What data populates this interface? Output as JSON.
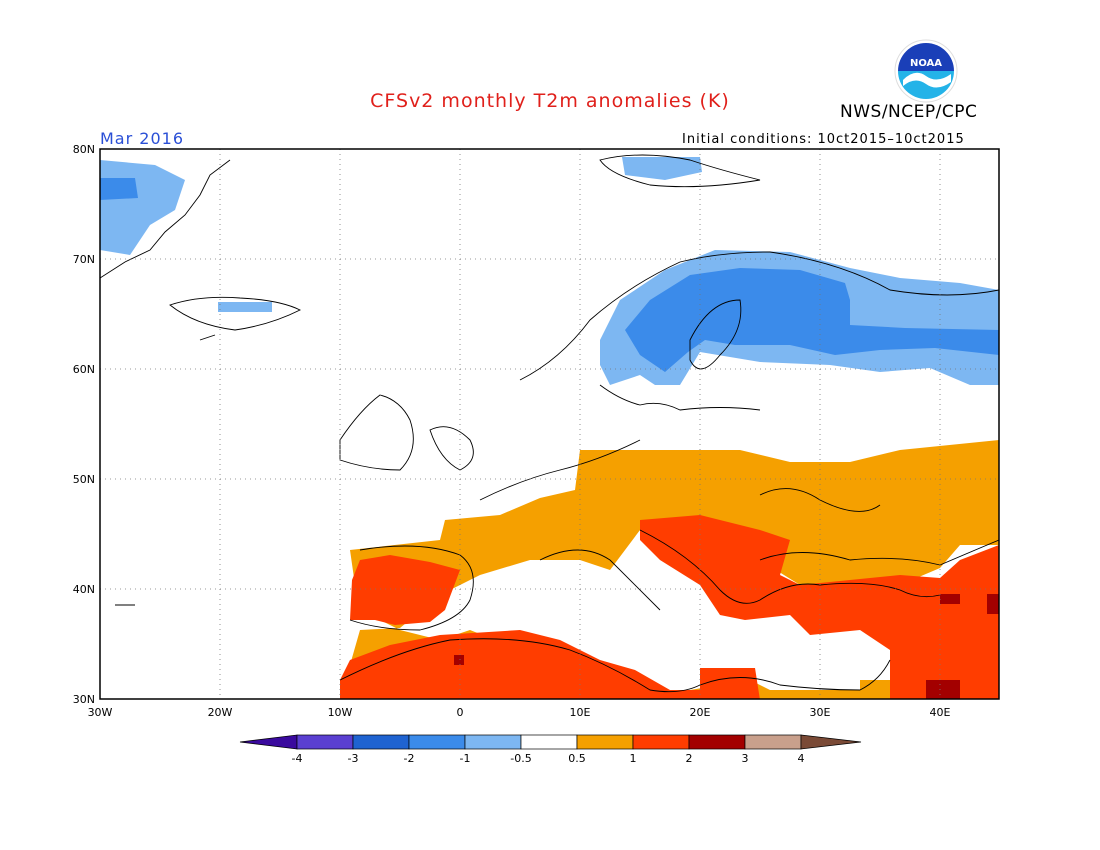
{
  "header": {
    "title": "CFSv2 monthly T2m anomalies (K)",
    "agency": "NWS/NCEP/CPC",
    "period": "Mar 2016",
    "initial_conditions": "Initial conditions: 10ct2015–10ct2015"
  },
  "logo": {
    "text": "NOAA",
    "icon": "noaa-logo-icon"
  },
  "map": {
    "projection": "lat-lon",
    "lon_range": [
      -30,
      45
    ],
    "lat_range": [
      30,
      80
    ],
    "gridlines": "dotted",
    "lat_labels": [
      "80N",
      "70N",
      "60N",
      "50N",
      "40N",
      "30N"
    ],
    "lon_labels": [
      "30W",
      "20W",
      "10W",
      "0",
      "10E",
      "20E",
      "30E",
      "40E"
    ]
  },
  "colorbar": {
    "tick_labels": [
      "-4",
      "-3",
      "-2",
      "-1",
      "-0.5",
      "0.5",
      "1",
      "2",
      "3",
      "4"
    ],
    "colors": [
      "#3a0a9e",
      "#5a3fd1",
      "#1f63d1",
      "#3b8bea",
      "#7db7f2",
      "#ffffff",
      "#f5a000",
      "#ff3d00",
      "#a30000",
      "#c9a08c",
      "#7a4a36"
    ]
  },
  "colors": {
    "title_red": "#e0201b",
    "period_blue": "#2a4fd6",
    "anomaly_cold_1": "#7db7f2",
    "anomaly_cold_2": "#3b8bea",
    "anomaly_cold_3": "#1f63d1",
    "anomaly_warm_1": "#f5a000",
    "anomaly_warm_2": "#ff3d00",
    "anomaly_warm_3": "#a30000"
  }
}
